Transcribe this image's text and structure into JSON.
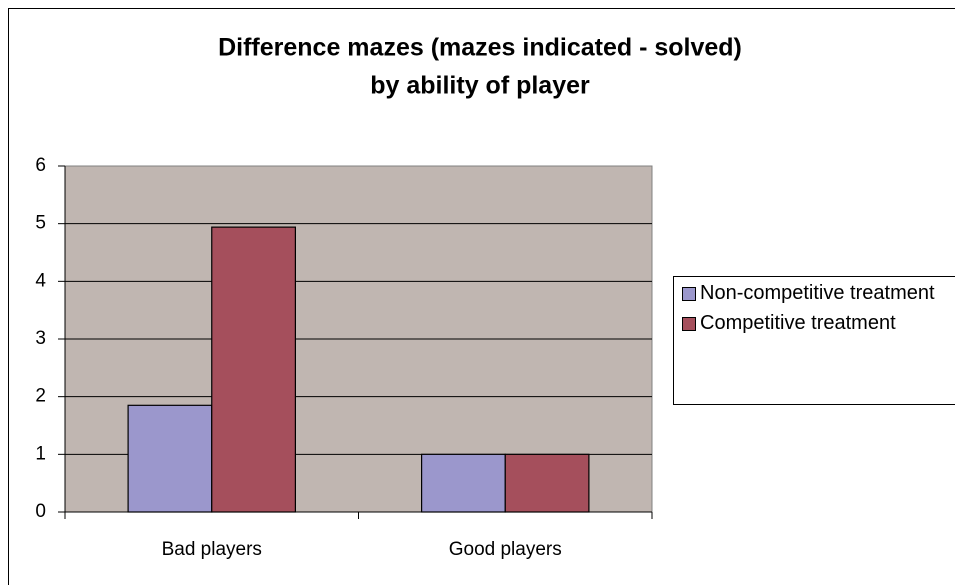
{
  "chart_data": {
    "type": "bar",
    "title": [
      "Difference mazes (mazes indicated - solved)",
      "by ability of player"
    ],
    "categories": [
      "Bad players",
      "Good players"
    ],
    "series": [
      {
        "name": "Non-competitive treatment",
        "color": "#9b97cc",
        "values": [
          1.85,
          1.0
        ]
      },
      {
        "name": "Competitive treatment",
        "color": "#a54f5c",
        "values": [
          4.94,
          1.0
        ]
      }
    ],
    "ylim": [
      0,
      6
    ],
    "yticks": [
      0,
      1,
      2,
      3,
      4,
      5,
      6
    ],
    "grid": true,
    "legend": "right"
  }
}
